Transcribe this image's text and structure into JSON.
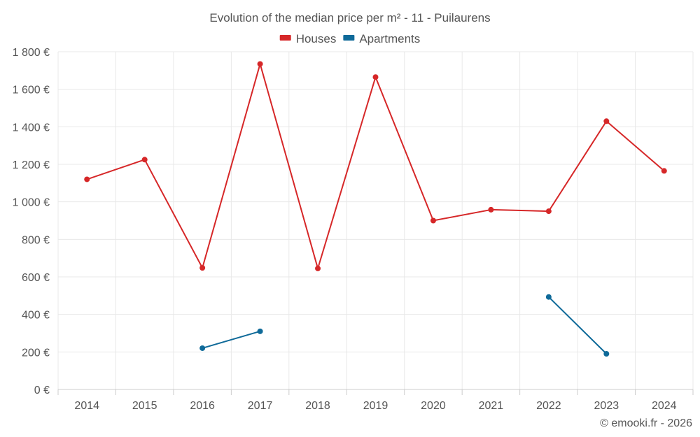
{
  "chart_data": {
    "type": "line",
    "title": "Evolution of the median price per m² - 11 - Puilaurens",
    "categories": [
      "2014",
      "2015",
      "2016",
      "2017",
      "2018",
      "2019",
      "2020",
      "2021",
      "2022",
      "2023",
      "2024"
    ],
    "series": [
      {
        "name": "Houses",
        "color": "#d62728",
        "values": [
          1120,
          1225,
          648,
          1735,
          645,
          1665,
          900,
          958,
          950,
          1430,
          1165
        ]
      },
      {
        "name": "Apartments",
        "color": "#0f6a99",
        "values": [
          null,
          null,
          220,
          310,
          null,
          null,
          null,
          null,
          493,
          190,
          null
        ]
      }
    ],
    "ylim": [
      0,
      1800
    ],
    "yticks": [
      0,
      200,
      400,
      600,
      800,
      1000,
      1200,
      1400,
      1600,
      1800
    ],
    "ytick_labels": [
      "0 €",
      "200 €",
      "400 €",
      "600 €",
      "800 €",
      "1 000 €",
      "1 200 €",
      "1 400 €",
      "1 600 €",
      "1 800 €"
    ],
    "grid": true,
    "legend_position": "top-center",
    "credit": "© emooki.fr - 2026"
  }
}
